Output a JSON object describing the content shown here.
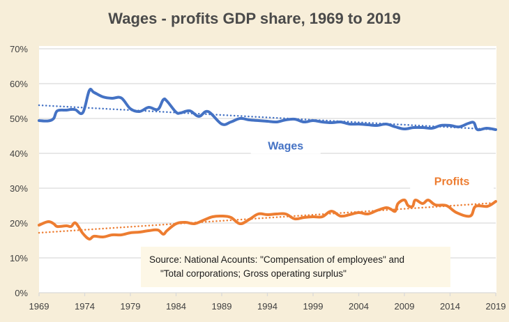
{
  "chart_data": {
    "type": "line",
    "title": "Wages - profits GDP share, 1969 to 2019",
    "xlabel": "",
    "ylabel": "",
    "xlim": [
      1969,
      2019
    ],
    "ylim": [
      0,
      70
    ],
    "grid": true,
    "x_ticks": [
      "1969",
      "1974",
      "1979",
      "1984",
      "1989",
      "1994",
      "1999",
      "2004",
      "2009",
      "2014",
      "2019"
    ],
    "y_ticks": [
      "0%",
      "10%",
      "20%",
      "30%",
      "40%",
      "50%",
      "60%",
      "70%"
    ],
    "series": [
      {
        "name": "Wages",
        "color": "#4472c4",
        "x": [
          1969,
          1970,
          1970.6,
          1971,
          1972,
          1972.5,
          1973,
          1973.8,
          1974.5,
          1975,
          1976,
          1977,
          1978,
          1979,
          1980,
          1981,
          1982,
          1982.6,
          1983,
          1984,
          1984.5,
          1985.5,
          1986.5,
          1987.5,
          1989,
          1990,
          1991,
          1992,
          1993,
          1994,
          1995,
          1996,
          1997,
          1998,
          1999,
          2000,
          2001,
          2002,
          2003,
          2004,
          2005,
          2006,
          2007,
          2008,
          2009,
          2010,
          2011,
          2012,
          2013,
          2014,
          2015,
          2016,
          2016.6,
          2017,
          2018,
          2019
        ],
        "values": [
          49.4,
          49.3,
          50,
          52.2,
          52.4,
          52.6,
          52.5,
          51.7,
          58,
          57.5,
          56.2,
          55.8,
          55.9,
          52.8,
          52,
          53.2,
          52.6,
          55.4,
          55,
          51.8,
          51.6,
          52.2,
          50.6,
          52,
          48.4,
          49,
          50,
          49.6,
          49.4,
          49.2,
          49,
          49.6,
          49.8,
          49,
          49.4,
          49,
          48.8,
          49,
          48.4,
          48.4,
          48.2,
          48,
          48.4,
          47.6,
          47,
          47.4,
          47.4,
          47.2,
          48,
          48,
          47.6,
          48.6,
          48.8,
          46.8,
          47.2,
          46.8
        ]
      },
      {
        "name": "Profits",
        "color": "#ed7d31",
        "x": [
          1969,
          1970,
          1970.6,
          1971,
          1972,
          1972.5,
          1973,
          1973.8,
          1974.5,
          1975,
          1976,
          1977,
          1978,
          1979,
          1980,
          1981,
          1982,
          1982.6,
          1983,
          1984,
          1985,
          1986,
          1987,
          1988,
          1989,
          1990,
          1991,
          1992,
          1993,
          1994,
          1995,
          1996,
          1997,
          1998,
          1999,
          2000,
          2001,
          2002,
          2003,
          2004,
          2005,
          2006,
          2007,
          2007.5,
          2008,
          2008.3,
          2009,
          2009.4,
          2009.9,
          2010.2,
          2011,
          2011.6,
          2012.4,
          2013.6,
          2014.7,
          2016.2,
          2016.8,
          2018.1,
          2019
        ],
        "values": [
          19.4,
          20.4,
          19.8,
          19,
          19.2,
          19,
          20,
          17,
          15.4,
          16.2,
          16,
          16.6,
          16.6,
          17.2,
          17.4,
          17.8,
          18,
          16.8,
          17.8,
          19.8,
          20.2,
          19.8,
          20.8,
          21.8,
          22,
          21.6,
          19.8,
          21,
          22.6,
          22.4,
          22.6,
          22.6,
          21.2,
          21.6,
          21.8,
          21.8,
          23.4,
          22,
          22.4,
          23,
          22.6,
          23.6,
          24.4,
          24,
          23.4,
          25.6,
          26.6,
          25,
          24.8,
          26.6,
          25.6,
          26.6,
          25.2,
          25,
          23,
          22,
          24.8,
          24.8,
          26.2
        ]
      }
    ],
    "trendlines": [
      {
        "name": "Wages trend",
        "color": "#4472c4",
        "style": "dotted",
        "x": [
          1969,
          2019
        ],
        "values": [
          53.8,
          46.8
        ]
      },
      {
        "name": "Profits trend",
        "color": "#ed7d31",
        "style": "dotted",
        "x": [
          1969,
          2019
        ],
        "values": [
          17.2,
          25.8
        ]
      }
    ],
    "annotations": [
      {
        "text": "Wages",
        "color": "#4472c4",
        "x": 1996,
        "y": 41.5
      },
      {
        "text": "Profits",
        "color": "#ed7d31",
        "x": 2014.2,
        "y": 31.3
      }
    ],
    "legend": "none"
  },
  "source": {
    "line1": "Source: National Acounts:  \"Compensation of employees\" and",
    "line2": "\"Total corporations; Gross operating surplus\""
  }
}
